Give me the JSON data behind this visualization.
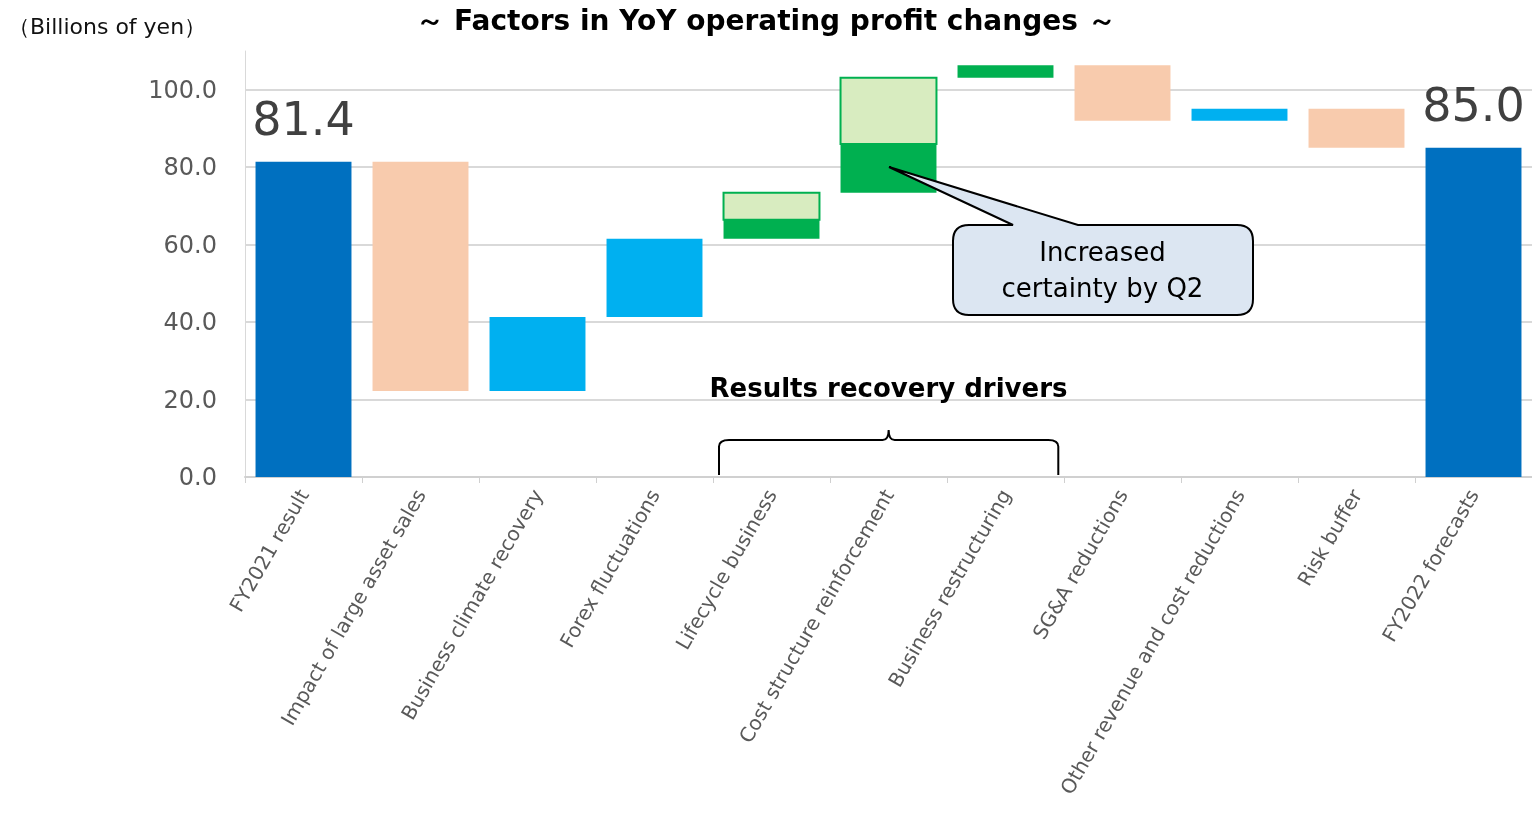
{
  "chart_data": {
    "type": "bar",
    "title": "～ Factors in YoY operating profit changes ～",
    "ylabel": "（Billions of yen）",
    "categories": [
      "FY2021 result",
      "Impact of large asset sales",
      "Business climate recovery",
      "Forex fluctuations",
      "Lifecycle business",
      "Cost structure reinforcement",
      "Business restructuring",
      "SG&A reductions",
      "Other revenue and cost reductions",
      "Risk buffer",
      "FY2022 forecasts"
    ],
    "series": [
      {
        "base": [
          0,
          81.4,
          22.2,
          41.3,
          61.5,
          73.4,
          103.1,
          106.3,
          92.0,
          95.1,
          0
        ],
        "values": [
          81.4,
          -59.2,
          19.1,
          20.2,
          4.9,
          12.6,
          3.2,
          -14.3,
          3.1,
          -10.1,
          85.0
        ],
        "colors": [
          "#0070c0",
          "#f8cbad",
          "#00b0f0",
          "#00b0f0",
          "#00b050",
          "#00b050",
          "#00b050",
          "#f8cbad",
          "#00b0f0",
          "#f8cbad",
          "#0070c0"
        ],
        "value_labels": [
          "81.4",
          null,
          null,
          null,
          null,
          null,
          null,
          null,
          null,
          null,
          "85.0"
        ]
      },
      {
        "base": [
          null,
          null,
          null,
          null,
          66.4,
          86.0,
          null,
          null,
          null,
          null,
          null
        ],
        "values": [
          null,
          null,
          null,
          null,
          7.0,
          17.1,
          null,
          null,
          null,
          null,
          null
        ],
        "color": "#d8ecc0"
      }
    ],
    "ylim": [
      0,
      110
    ],
    "yticks": [
      {
        "value": 0,
        "label": "0.0"
      },
      {
        "value": 20,
        "label": "20.0"
      },
      {
        "value": 40,
        "label": "40.0"
      },
      {
        "value": 60,
        "label": "60.0"
      },
      {
        "value": 80,
        "label": "80.0"
      },
      {
        "value": 100,
        "label": "100.0"
      }
    ],
    "grid": "y",
    "annotations": [
      "Increased certainty by Q2",
      "Results recovery drivers"
    ]
  }
}
